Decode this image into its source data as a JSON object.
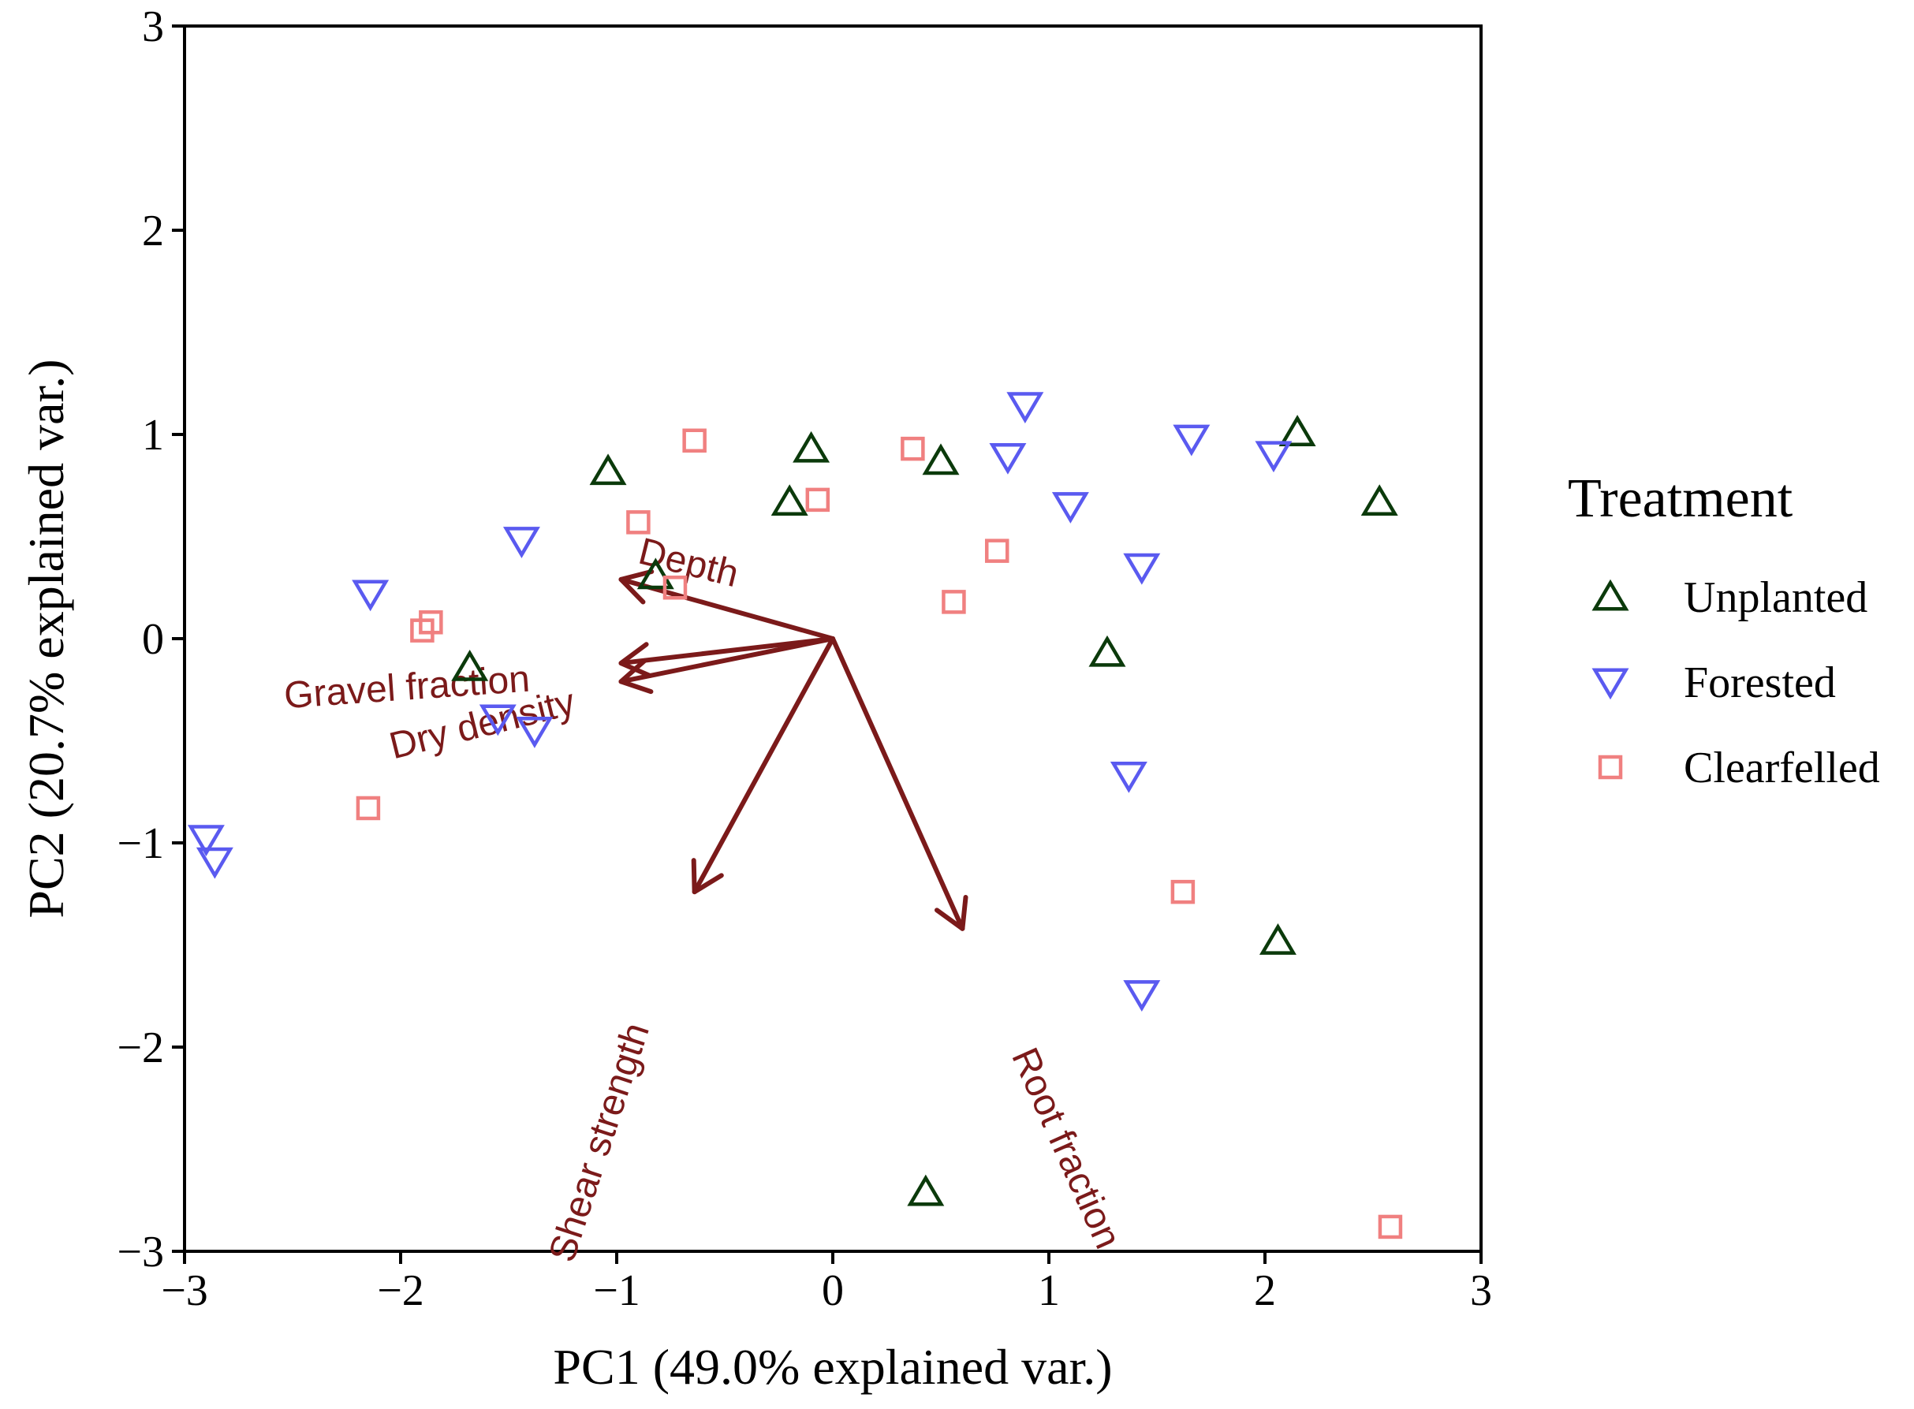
{
  "chart_data": {
    "type": "scatter",
    "subtype": "pca-biplot",
    "title": "",
    "xlabel": "PC1 (49.0% explained var.)",
    "ylabel": "PC2 (20.7% explained var.)",
    "xlim": [
      -3,
      3
    ],
    "ylim": [
      -3,
      3
    ],
    "xticks": [
      -3,
      -2,
      -1,
      0,
      1,
      2,
      3
    ],
    "yticks": [
      -3,
      -2,
      -1,
      0,
      1,
      2,
      3
    ],
    "xtick_labels": [
      "−3",
      "−2",
      "−1",
      "0",
      "1",
      "2",
      "3"
    ],
    "ytick_labels": [
      "−3",
      "−2",
      "−1",
      "0",
      "1",
      "2",
      "3"
    ],
    "grid": false,
    "legend": {
      "title": "Treatment",
      "position": "right"
    },
    "series": [
      {
        "name": "Unplanted",
        "marker": "triangle-up",
        "color": "#0b3a0b",
        "points": [
          [
            -1.04,
            0.82
          ],
          [
            -0.1,
            0.93
          ],
          [
            -0.2,
            0.67
          ],
          [
            0.5,
            0.87
          ],
          [
            2.15,
            1.01
          ],
          [
            2.53,
            0.67
          ],
          [
            -0.82,
            0.31
          ],
          [
            -1.68,
            -0.14
          ],
          [
            1.27,
            -0.07
          ],
          [
            2.06,
            -1.48
          ],
          [
            0.43,
            -2.71
          ]
        ]
      },
      {
        "name": "Forested",
        "marker": "triangle-down",
        "color": "#5a5af0",
        "points": [
          [
            0.89,
            1.14
          ],
          [
            0.81,
            0.89
          ],
          [
            1.1,
            0.65
          ],
          [
            1.66,
            0.98
          ],
          [
            2.04,
            0.9
          ],
          [
            1.43,
            0.35
          ],
          [
            -1.44,
            0.48
          ],
          [
            -2.14,
            0.22
          ],
          [
            -1.38,
            -0.45
          ],
          [
            -1.55,
            -0.39
          ],
          [
            1.37,
            -0.67
          ],
          [
            1.43,
            -1.74
          ],
          [
            -2.9,
            -0.98
          ],
          [
            -2.86,
            -1.09
          ]
        ]
      },
      {
        "name": "Clearfelled",
        "marker": "square",
        "color": "#f08080",
        "points": [
          [
            -0.64,
            0.97
          ],
          [
            0.37,
            0.93
          ],
          [
            -0.07,
            0.68
          ],
          [
            -0.9,
            0.57
          ],
          [
            0.76,
            0.43
          ],
          [
            -0.73,
            0.25
          ],
          [
            0.56,
            0.18
          ],
          [
            -1.86,
            0.08
          ],
          [
            -1.9,
            0.04
          ],
          [
            -2.15,
            -0.83
          ],
          [
            1.62,
            -1.24
          ],
          [
            2.58,
            -2.88
          ]
        ]
      }
    ],
    "loadings": {
      "color": "#7b1a1a",
      "origin": [
        0,
        0
      ],
      "vectors": [
        {
          "name": "Depth",
          "end": [
            -0.98,
            0.29
          ],
          "label_at": [
            -0.67,
            0.36
          ],
          "label_angle": 14
        },
        {
          "name": "Gravel fraction",
          "end": [
            -0.98,
            -0.12
          ],
          "label_at": [
            -1.97,
            -0.25
          ],
          "label_angle": -4
        },
        {
          "name": "Dry density",
          "end": [
            -0.98,
            -0.21
          ],
          "label_at": [
            -1.62,
            -0.43
          ],
          "label_angle": -14
        },
        {
          "name": "Shear strength",
          "end": [
            -0.64,
            -1.24
          ],
          "label_at": [
            -1.07,
            -2.47
          ],
          "label_angle": -72
        },
        {
          "name": "Root fraction",
          "end": [
            0.6,
            -1.42
          ],
          "label_at": [
            1.07,
            -2.5
          ],
          "label_angle": 66
        }
      ]
    }
  }
}
